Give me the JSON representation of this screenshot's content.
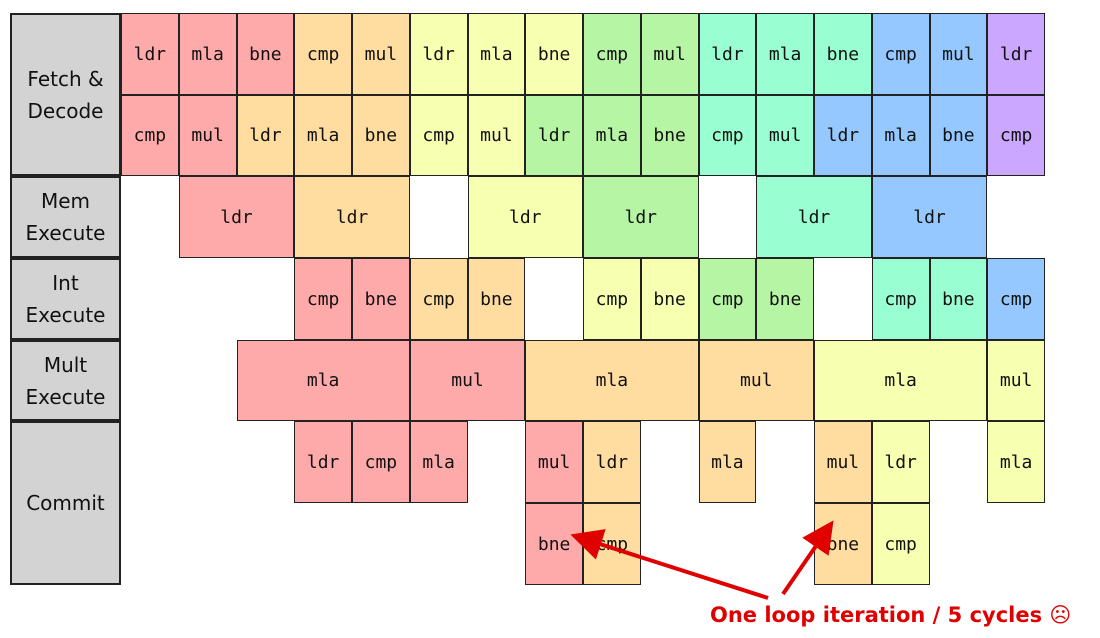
{
  "colors": {
    "i1": "#ffaaaa",
    "i2": "#ffdca0",
    "i3": "#f7ffb0",
    "i4": "#b5f5a4",
    "i5": "#99ffd2",
    "i6": "#94c8ff",
    "i7": "#cba7ff",
    "arrow": "#e00000"
  },
  "stages": [
    {
      "id": "fetch",
      "label": "Fetch &\nDecode"
    },
    {
      "id": "mem",
      "label": "Mem\nExecute"
    },
    {
      "id": "int",
      "label": "Int\nExecute"
    },
    {
      "id": "mult",
      "label": "Mult\nExecute"
    },
    {
      "id": "commit",
      "label": "Commit"
    }
  ],
  "rows": [
    {
      "id": "fetch-1",
      "cells": [
        {
          "col": 0,
          "span": 1,
          "label": "ldr",
          "color": "i1"
        },
        {
          "col": 1,
          "span": 1,
          "label": "mla",
          "color": "i1"
        },
        {
          "col": 2,
          "span": 1,
          "label": "bne",
          "color": "i1"
        },
        {
          "col": 3,
          "span": 1,
          "label": "cmp",
          "color": "i2"
        },
        {
          "col": 4,
          "span": 1,
          "label": "mul",
          "color": "i2"
        },
        {
          "col": 5,
          "span": 1,
          "label": "ldr",
          "color": "i3"
        },
        {
          "col": 6,
          "span": 1,
          "label": "mla",
          "color": "i3"
        },
        {
          "col": 7,
          "span": 1,
          "label": "bne",
          "color": "i3"
        },
        {
          "col": 8,
          "span": 1,
          "label": "cmp",
          "color": "i4"
        },
        {
          "col": 9,
          "span": 1,
          "label": "mul",
          "color": "i4"
        },
        {
          "col": 10,
          "span": 1,
          "label": "ldr",
          "color": "i5"
        },
        {
          "col": 11,
          "span": 1,
          "label": "mla",
          "color": "i5"
        },
        {
          "col": 12,
          "span": 1,
          "label": "bne",
          "color": "i5"
        },
        {
          "col": 13,
          "span": 1,
          "label": "cmp",
          "color": "i6"
        },
        {
          "col": 14,
          "span": 1,
          "label": "mul",
          "color": "i6"
        },
        {
          "col": 15,
          "span": 1,
          "label": "ldr",
          "color": "i7"
        }
      ]
    },
    {
      "id": "fetch-2",
      "cells": [
        {
          "col": 0,
          "span": 1,
          "label": "cmp",
          "color": "i1"
        },
        {
          "col": 1,
          "span": 1,
          "label": "mul",
          "color": "i1"
        },
        {
          "col": 2,
          "span": 1,
          "label": "ldr",
          "color": "i2"
        },
        {
          "col": 3,
          "span": 1,
          "label": "mla",
          "color": "i2"
        },
        {
          "col": 4,
          "span": 1,
          "label": "bne",
          "color": "i2"
        },
        {
          "col": 5,
          "span": 1,
          "label": "cmp",
          "color": "i3"
        },
        {
          "col": 6,
          "span": 1,
          "label": "mul",
          "color": "i3"
        },
        {
          "col": 7,
          "span": 1,
          "label": "ldr",
          "color": "i4"
        },
        {
          "col": 8,
          "span": 1,
          "label": "mla",
          "color": "i4"
        },
        {
          "col": 9,
          "span": 1,
          "label": "bne",
          "color": "i4"
        },
        {
          "col": 10,
          "span": 1,
          "label": "cmp",
          "color": "i5"
        },
        {
          "col": 11,
          "span": 1,
          "label": "mul",
          "color": "i5"
        },
        {
          "col": 12,
          "span": 1,
          "label": "ldr",
          "color": "i6"
        },
        {
          "col": 13,
          "span": 1,
          "label": "mla",
          "color": "i6"
        },
        {
          "col": 14,
          "span": 1,
          "label": "bne",
          "color": "i6"
        },
        {
          "col": 15,
          "span": 1,
          "label": "cmp",
          "color": "i7"
        }
      ]
    },
    {
      "id": "mem-1",
      "cells": [
        {
          "col": 1,
          "span": 2,
          "label": "ldr",
          "color": "i1"
        },
        {
          "col": 3,
          "span": 2,
          "label": "ldr",
          "color": "i2"
        },
        {
          "col": 6,
          "span": 2,
          "label": "ldr",
          "color": "i3"
        },
        {
          "col": 8,
          "span": 2,
          "label": "ldr",
          "color": "i4"
        },
        {
          "col": 11,
          "span": 2,
          "label": "ldr",
          "color": "i5"
        },
        {
          "col": 13,
          "span": 2,
          "label": "ldr",
          "color": "i6"
        }
      ]
    },
    {
      "id": "int-1",
      "cells": [
        {
          "col": 3,
          "span": 1,
          "label": "cmp",
          "color": "i1"
        },
        {
          "col": 4,
          "span": 1,
          "label": "bne",
          "color": "i1"
        },
        {
          "col": 5,
          "span": 1,
          "label": "cmp",
          "color": "i2"
        },
        {
          "col": 6,
          "span": 1,
          "label": "bne",
          "color": "i2"
        },
        {
          "col": 8,
          "span": 1,
          "label": "cmp",
          "color": "i3"
        },
        {
          "col": 9,
          "span": 1,
          "label": "bne",
          "color": "i3"
        },
        {
          "col": 10,
          "span": 1,
          "label": "cmp",
          "color": "i4"
        },
        {
          "col": 11,
          "span": 1,
          "label": "bne",
          "color": "i4"
        },
        {
          "col": 13,
          "span": 1,
          "label": "cmp",
          "color": "i5"
        },
        {
          "col": 14,
          "span": 1,
          "label": "bne",
          "color": "i5"
        },
        {
          "col": 15,
          "span": 1,
          "label": "cmp",
          "color": "i6"
        }
      ]
    },
    {
      "id": "mult-1",
      "cells": [
        {
          "col": 2,
          "span": 3,
          "label": "mla",
          "color": "i1"
        },
        {
          "col": 5,
          "span": 2,
          "label": "mul",
          "color": "i1"
        },
        {
          "col": 7,
          "span": 3,
          "label": "mla",
          "color": "i2"
        },
        {
          "col": 10,
          "span": 2,
          "label": "mul",
          "color": "i2"
        },
        {
          "col": 12,
          "span": 3,
          "label": "mla",
          "color": "i3"
        },
        {
          "col": 15,
          "span": 1,
          "label": "mul",
          "color": "i3"
        }
      ]
    },
    {
      "id": "commit-1",
      "cells": [
        {
          "col": 3,
          "span": 1,
          "label": "ldr",
          "color": "i1"
        },
        {
          "col": 4,
          "span": 1,
          "label": "cmp",
          "color": "i1"
        },
        {
          "col": 5,
          "span": 1,
          "label": "mla",
          "color": "i1"
        },
        {
          "col": 7,
          "span": 1,
          "label": "mul",
          "color": "i1"
        },
        {
          "col": 8,
          "span": 1,
          "label": "ldr",
          "color": "i2"
        },
        {
          "col": 10,
          "span": 1,
          "label": "mla",
          "color": "i2"
        },
        {
          "col": 12,
          "span": 1,
          "label": "mul",
          "color": "i2"
        },
        {
          "col": 13,
          "span": 1,
          "label": "ldr",
          "color": "i3"
        },
        {
          "col": 15,
          "span": 1,
          "label": "mla",
          "color": "i3"
        }
      ]
    },
    {
      "id": "commit-2",
      "cells": [
        {
          "col": 7,
          "span": 1,
          "label": "bne",
          "color": "i1"
        },
        {
          "col": 8,
          "span": 1,
          "label": "cmp",
          "color": "i2"
        },
        {
          "col": 12,
          "span": 1,
          "label": "bne",
          "color": "i2"
        },
        {
          "col": 13,
          "span": 1,
          "label": "cmp",
          "color": "i3"
        }
      ]
    }
  ],
  "annotation": "One loop iteration / 5 cycles ☹"
}
